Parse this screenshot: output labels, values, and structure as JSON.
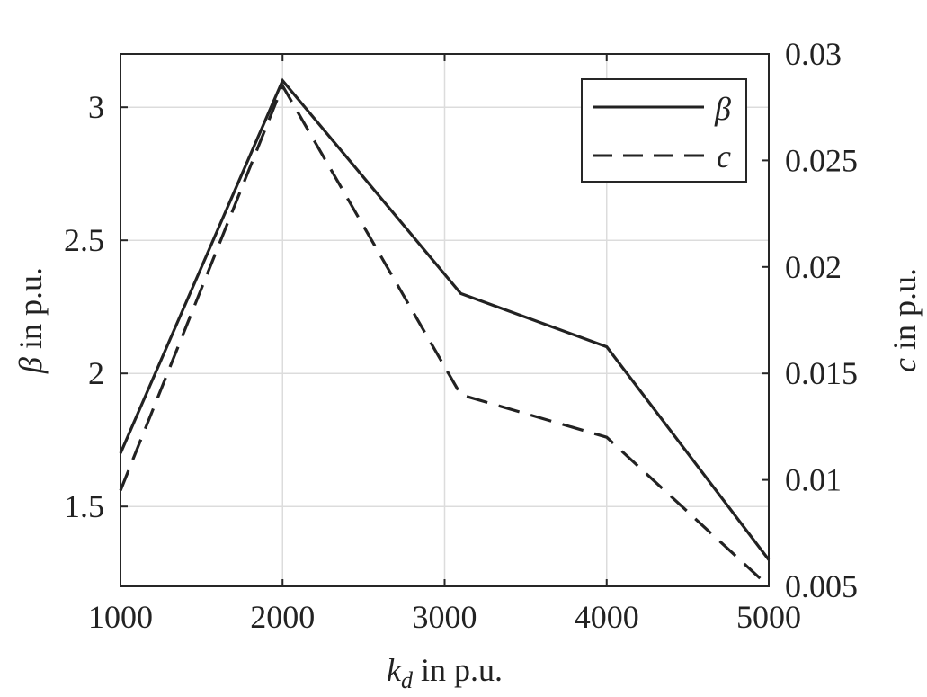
{
  "chart_data": {
    "type": "line",
    "x": [
      1000,
      2000,
      3100,
      4000,
      5000
    ],
    "x_ticks": [
      "1000",
      "2000",
      "3000",
      "4000",
      "5000"
    ],
    "xlim": [
      1000,
      5000
    ],
    "xlabel": {
      "symbol": "k",
      "subscript": "d",
      "rest": " in p.u."
    },
    "y_left": {
      "label_symbol": "β",
      "label_rest": " in p.u.",
      "ylim": [
        1.2,
        3.2
      ],
      "ticks": [
        "1.5",
        "2",
        "2.5",
        "3"
      ],
      "tick_values": [
        1.5,
        2,
        2.5,
        3
      ]
    },
    "y_right": {
      "label_symbol": "c",
      "label_rest": " in p.u.",
      "ylim": [
        0.005,
        0.03
      ],
      "ticks": [
        "0.005",
        "0.01",
        "0.015",
        "0.02",
        "0.025",
        "0.03"
      ],
      "tick_values": [
        0.005,
        0.01,
        0.015,
        0.02,
        0.025,
        0.03
      ]
    },
    "series": [
      {
        "name": "β",
        "axis": "left",
        "style": "solid",
        "values": [
          1.7,
          3.1,
          2.3,
          2.1,
          1.3
        ]
      },
      {
        "name": "c",
        "axis": "right",
        "style": "dashed",
        "values": [
          0.0095,
          0.0285,
          0.014,
          0.012,
          0.005
        ]
      }
    ],
    "grid": true,
    "legend_position": "top-right",
    "colors": {
      "line": "#222222",
      "grid": "#dcdcdc",
      "axis": "#262626"
    }
  }
}
